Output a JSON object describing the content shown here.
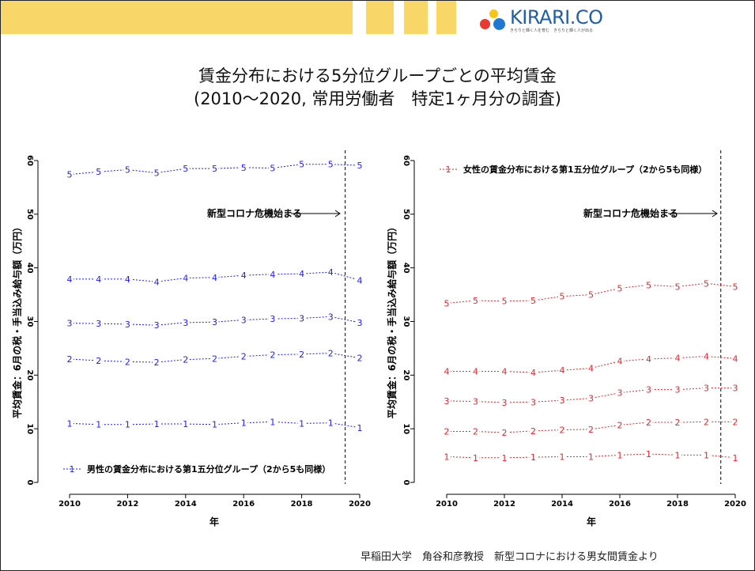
{
  "header": {
    "brand": "KIRARI.CO",
    "tagline": "きらりと輝く人を育む　きらりと輝く人が出る",
    "brand_colors": [
      "#e63b2e",
      "#f5c518",
      "#1f78d1"
    ]
  },
  "title_line1": "賃金分布における5分位グループごとの平均賃金",
  "title_line2": "(2010〜2020, 常用労働者　特定1ヶ月分の調査)",
  "footer": "早稲田大学　角谷和彦教授　新型コロナにおける男女間賃金より",
  "chart_data": [
    {
      "type": "line",
      "color": "#1a1aff",
      "xlabel": "年",
      "ylabel": "平均賃金：6月の税・手当込み給与額（万円）",
      "xlim": [
        2010,
        2020
      ],
      "ylim": [
        0,
        60
      ],
      "xticks": [
        "2010",
        "2012",
        "2014",
        "2016",
        "2018",
        "2020"
      ],
      "yticks": [
        "0",
        "10",
        "20",
        "30",
        "40",
        "50",
        "60"
      ],
      "annotation": "新型コロナ危機始まる",
      "event_line_x": 2019.5,
      "legend": "男性の賃金分布における第1五分位グループ（2から5も同様）",
      "legend_position": "bottom-left",
      "x": [
        2010,
        2011,
        2012,
        2013,
        2014,
        2015,
        2016,
        2017,
        2018,
        2019,
        2020
      ],
      "series": [
        {
          "marker": "1",
          "values": [
            11.0,
            10.8,
            10.8,
            10.9,
            10.9,
            10.8,
            11.1,
            11.3,
            11.0,
            11.1,
            10.2
          ]
        },
        {
          "marker": "2",
          "values": [
            23.0,
            22.7,
            22.5,
            22.4,
            22.9,
            23.1,
            23.5,
            23.8,
            23.9,
            24.1,
            23.2
          ]
        },
        {
          "marker": "3",
          "values": [
            29.7,
            29.6,
            29.5,
            29.3,
            29.8,
            29.9,
            30.3,
            30.5,
            30.6,
            30.9,
            29.8
          ]
        },
        {
          "marker": "4",
          "values": [
            37.9,
            37.9,
            37.9,
            37.4,
            38.1,
            38.2,
            38.6,
            38.8,
            38.9,
            39.2,
            37.7
          ]
        },
        {
          "marker": "5",
          "values": [
            57.4,
            57.9,
            58.3,
            57.7,
            58.5,
            58.5,
            58.7,
            58.6,
            59.3,
            59.3,
            59.1
          ]
        }
      ]
    },
    {
      "type": "line",
      "color": "#e8242a",
      "xlabel": "年",
      "ylabel": "平均賃金：6月の税・手当込み給与額（万円）",
      "xlim": [
        2010,
        2020
      ],
      "ylim": [
        0,
        60
      ],
      "xticks": [
        "2010",
        "2012",
        "2014",
        "2016",
        "2018",
        "2020"
      ],
      "yticks": [
        "0",
        "10",
        "20",
        "30",
        "40",
        "50",
        "60"
      ],
      "annotation": "新型コロナ危機始まる",
      "event_line_x": 2019.5,
      "legend": "女性の賃金分布における第1五分位グループ（2から5も同様）",
      "legend_position": "top-left",
      "x": [
        2010,
        2011,
        2012,
        2013,
        2014,
        2015,
        2016,
        2017,
        2018,
        2019,
        2020
      ],
      "series": [
        {
          "marker": "1",
          "values": [
            4.8,
            4.6,
            4.6,
            4.7,
            4.8,
            4.8,
            5.1,
            5.3,
            5.1,
            5.1,
            4.6
          ]
        },
        {
          "marker": "2",
          "values": [
            9.5,
            9.5,
            9.3,
            9.6,
            9.8,
            9.9,
            10.7,
            11.2,
            11.2,
            11.3,
            11.3
          ]
        },
        {
          "marker": "3",
          "values": [
            15.2,
            15.1,
            14.9,
            15.0,
            15.3,
            15.7,
            16.7,
            17.3,
            17.3,
            17.6,
            17.6
          ]
        },
        {
          "marker": "4",
          "values": [
            20.7,
            20.7,
            20.7,
            20.5,
            20.9,
            21.3,
            22.6,
            23.0,
            23.2,
            23.5,
            23.1
          ]
        },
        {
          "marker": "5",
          "values": [
            33.4,
            33.9,
            33.8,
            33.9,
            34.7,
            35.0,
            36.2,
            36.8,
            36.5,
            37.1,
            36.5
          ]
        }
      ]
    }
  ]
}
